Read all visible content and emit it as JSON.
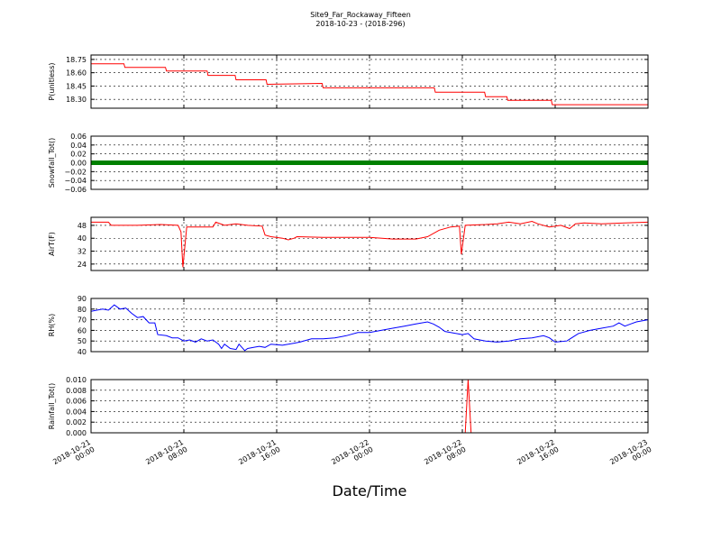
{
  "figure": {
    "title": "Site9_Far_Rockaway_Fifteen",
    "subtitle": "2018-10-23 - (2018-296)",
    "xlabel": "Date/Time"
  },
  "chart_data": {
    "type": "line",
    "xlim": [
      "2018-10-21 00:00",
      "2018-10-23 00:00"
    ],
    "x_ticks": [
      {
        "value": "2018-10-21 00:00",
        "line1": "2018-10-21",
        "line2": "00:00"
      },
      {
        "value": "2018-10-21 08:00",
        "line1": "2018-10-21",
        "line2": "08:00"
      },
      {
        "value": "2018-10-21 16:00",
        "line1": "2018-10-21",
        "line2": "16:00"
      },
      {
        "value": "2018-10-22 00:00",
        "line1": "2018-10-22",
        "line2": "00:00"
      },
      {
        "value": "2018-10-22 08:00",
        "line1": "2018-10-22",
        "line2": "08:00"
      },
      {
        "value": "2018-10-22 16:00",
        "line1": "2018-10-22",
        "line2": "16:00"
      },
      {
        "value": "2018-10-23 00:00",
        "line1": "2018-10-23",
        "line2": "00:00"
      }
    ],
    "grid": true,
    "panels": [
      {
        "id": "pressure",
        "ylabel": "P(unitless)",
        "ylim": [
          18.2,
          18.8
        ],
        "y_ticks": [
          18.3,
          18.45,
          18.6,
          18.75
        ],
        "y_tick_labels": [
          "18.30",
          "18.45",
          "18.60",
          "18.75"
        ],
        "color": "#ff0000",
        "style": "line",
        "points": [
          [
            "2018-10-21 00:00",
            18.7
          ],
          [
            "2018-10-21 02:50",
            18.7
          ],
          [
            "2018-10-21 02:55",
            18.66
          ],
          [
            "2018-10-21 06:25",
            18.66
          ],
          [
            "2018-10-21 06:30",
            18.62
          ],
          [
            "2018-10-21 10:00",
            18.62
          ],
          [
            "2018-10-21 10:05",
            18.57
          ],
          [
            "2018-10-21 12:25",
            18.57
          ],
          [
            "2018-10-21 12:30",
            18.52
          ],
          [
            "2018-10-21 15:05",
            18.52
          ],
          [
            "2018-10-21 15:10",
            18.47
          ],
          [
            "2018-10-21 19:55",
            18.48
          ],
          [
            "2018-10-21 20:00",
            18.43
          ],
          [
            "2018-10-22 05:35",
            18.43
          ],
          [
            "2018-10-22 05:40",
            18.38
          ],
          [
            "2018-10-22 09:55",
            18.38
          ],
          [
            "2018-10-22 10:00",
            18.33
          ],
          [
            "2018-10-22 11:50",
            18.33
          ],
          [
            "2018-10-22 11:55",
            18.29
          ],
          [
            "2018-10-22 15:40",
            18.29
          ],
          [
            "2018-10-22 15:45",
            18.24
          ],
          [
            "2018-10-23 00:00",
            18.24
          ]
        ]
      },
      {
        "id": "snowfall",
        "ylabel": "Snowfall_Tot()",
        "ylim": [
          -0.06,
          0.06
        ],
        "y_ticks": [
          -0.06,
          -0.04,
          -0.02,
          0.0,
          0.02,
          0.04,
          0.06
        ],
        "y_tick_labels": [
          "−0.06",
          "−0.04",
          "−0.02",
          "0.00",
          "0.02",
          "0.04",
          "0.06"
        ],
        "color": "#008000",
        "style": "thick",
        "points": [
          [
            "2018-10-21 00:00",
            0.0
          ],
          [
            "2018-10-23 00:00",
            0.0
          ]
        ]
      },
      {
        "id": "airtemp",
        "ylabel": "AirT(F)",
        "ylim": [
          20,
          53
        ],
        "y_ticks": [
          24,
          32,
          40,
          48
        ],
        "y_tick_labels": [
          "24",
          "32",
          "40",
          "48"
        ],
        "color": "#ff0000",
        "style": "line",
        "points": [
          [
            "2018-10-21 00:00",
            50
          ],
          [
            "2018-10-21 01:30",
            50
          ],
          [
            "2018-10-21 01:45",
            48
          ],
          [
            "2018-10-21 04:00",
            48
          ],
          [
            "2018-10-21 06:00",
            48.5
          ],
          [
            "2018-10-21 07:30",
            48
          ],
          [
            "2018-10-21 07:45",
            44
          ],
          [
            "2018-10-21 07:55",
            22
          ],
          [
            "2018-10-21 08:15",
            47
          ],
          [
            "2018-10-21 10:30",
            47
          ],
          [
            "2018-10-21 10:45",
            50
          ],
          [
            "2018-10-21 11:30",
            48
          ],
          [
            "2018-10-21 12:30",
            49
          ],
          [
            "2018-10-21 13:30",
            48
          ],
          [
            "2018-10-21 14:45",
            47.5
          ],
          [
            "2018-10-21 15:00",
            42
          ],
          [
            "2018-10-21 15:30",
            41
          ],
          [
            "2018-10-21 16:30",
            40
          ],
          [
            "2018-10-21 17:00",
            39
          ],
          [
            "2018-10-21 17:30",
            40
          ],
          [
            "2018-10-21 17:45",
            41
          ],
          [
            "2018-10-21 20:00",
            40.5
          ],
          [
            "2018-10-22 00:00",
            40.5
          ],
          [
            "2018-10-22 02:00",
            39.5
          ],
          [
            "2018-10-22 04:00",
            39.5
          ],
          [
            "2018-10-22 05:00",
            41
          ],
          [
            "2018-10-22 06:00",
            45
          ],
          [
            "2018-10-22 07:00",
            47
          ],
          [
            "2018-10-22 07:45",
            47.5
          ],
          [
            "2018-10-22 07:55",
            30
          ],
          [
            "2018-10-22 08:15",
            48
          ],
          [
            "2018-10-22 10:00",
            48.5
          ],
          [
            "2018-10-22 11:00",
            49
          ],
          [
            "2018-10-22 12:00",
            50
          ],
          [
            "2018-10-22 13:00",
            49
          ],
          [
            "2018-10-22 14:00",
            50.5
          ],
          [
            "2018-10-22 14:30",
            49
          ],
          [
            "2018-10-22 15:30",
            47
          ],
          [
            "2018-10-22 16:30",
            48
          ],
          [
            "2018-10-22 17:15",
            46
          ],
          [
            "2018-10-22 17:45",
            49
          ],
          [
            "2018-10-22 18:30",
            49.5
          ],
          [
            "2018-10-22 20:00",
            49
          ],
          [
            "2018-10-22 22:00",
            49.5
          ],
          [
            "2018-10-23 00:00",
            50
          ]
        ]
      },
      {
        "id": "rh",
        "ylabel": "RH(%)",
        "ylim": [
          40,
          90
        ],
        "y_ticks": [
          40,
          50,
          60,
          70,
          80,
          90
        ],
        "y_tick_labels": [
          "40",
          "50",
          "60",
          "70",
          "80",
          "90"
        ],
        "color": "#0000ff",
        "style": "line",
        "points": [
          [
            "2018-10-21 00:00",
            78
          ],
          [
            "2018-10-21 01:00",
            80
          ],
          [
            "2018-10-21 01:30",
            79
          ],
          [
            "2018-10-21 02:00",
            84
          ],
          [
            "2018-10-21 02:30",
            80
          ],
          [
            "2018-10-21 03:00",
            81
          ],
          [
            "2018-10-21 03:30",
            76
          ],
          [
            "2018-10-21 04:00",
            72
          ],
          [
            "2018-10-21 04:30",
            73
          ],
          [
            "2018-10-21 05:00",
            67
          ],
          [
            "2018-10-21 05:30",
            67
          ],
          [
            "2018-10-21 05:45",
            56
          ],
          [
            "2018-10-21 06:30",
            55
          ],
          [
            "2018-10-21 07:00",
            53
          ],
          [
            "2018-10-21 07:30",
            53
          ],
          [
            "2018-10-21 08:00",
            50
          ],
          [
            "2018-10-21 08:30",
            51
          ],
          [
            "2018-10-21 09:00",
            49
          ],
          [
            "2018-10-21 09:30",
            52
          ],
          [
            "2018-10-21 10:00",
            50
          ],
          [
            "2018-10-21 10:30",
            51
          ],
          [
            "2018-10-21 11:00",
            47
          ],
          [
            "2018-10-21 11:15",
            43
          ],
          [
            "2018-10-21 11:30",
            47
          ],
          [
            "2018-10-21 12:00",
            43
          ],
          [
            "2018-10-21 12:30",
            42
          ],
          [
            "2018-10-21 12:45",
            47
          ],
          [
            "2018-10-21 13:15",
            41
          ],
          [
            "2018-10-21 13:30",
            43
          ],
          [
            "2018-10-21 14:00",
            44
          ],
          [
            "2018-10-21 14:30",
            45
          ],
          [
            "2018-10-21 15:00",
            44
          ],
          [
            "2018-10-21 15:30",
            47
          ],
          [
            "2018-10-21 16:30",
            46
          ],
          [
            "2018-10-21 17:30",
            48
          ],
          [
            "2018-10-21 18:00",
            49
          ],
          [
            "2018-10-21 19:00",
            52
          ],
          [
            "2018-10-21 20:00",
            52
          ],
          [
            "2018-10-21 21:00",
            53
          ],
          [
            "2018-10-21 22:00",
            55
          ],
          [
            "2018-10-21 23:00",
            58
          ],
          [
            "2018-10-22 00:00",
            58
          ],
          [
            "2018-10-22 01:00",
            60
          ],
          [
            "2018-10-22 02:00",
            62
          ],
          [
            "2018-10-22 03:00",
            64
          ],
          [
            "2018-10-22 04:00",
            66
          ],
          [
            "2018-10-22 05:00",
            68
          ],
          [
            "2018-10-22 05:30",
            66
          ],
          [
            "2018-10-22 06:00",
            63
          ],
          [
            "2018-10-22 06:30",
            59
          ],
          [
            "2018-10-22 08:00",
            56
          ],
          [
            "2018-10-22 08:30",
            57
          ],
          [
            "2018-10-22 09:00",
            52
          ],
          [
            "2018-10-22 10:00",
            50
          ],
          [
            "2018-10-22 11:00",
            49
          ],
          [
            "2018-10-22 12:00",
            50
          ],
          [
            "2018-10-22 13:00",
            52
          ],
          [
            "2018-10-22 14:00",
            53
          ],
          [
            "2018-10-22 15:00",
            55
          ],
          [
            "2018-10-22 15:30",
            53
          ],
          [
            "2018-10-22 16:00",
            49
          ],
          [
            "2018-10-22 17:00",
            50
          ],
          [
            "2018-10-22 18:00",
            57
          ],
          [
            "2018-10-22 19:00",
            60
          ],
          [
            "2018-10-22 20:00",
            62
          ],
          [
            "2018-10-22 21:00",
            64
          ],
          [
            "2018-10-22 21:30",
            67
          ],
          [
            "2018-10-22 22:00",
            64
          ],
          [
            "2018-10-22 22:30",
            66
          ],
          [
            "2018-10-22 23:00",
            68
          ],
          [
            "2018-10-23 00:00",
            70
          ]
        ]
      },
      {
        "id": "rainfall",
        "ylabel": "Rainfall_Tot()",
        "ylim": [
          0.0,
          0.01
        ],
        "y_ticks": [
          0.0,
          0.002,
          0.004,
          0.006,
          0.008,
          0.01
        ],
        "y_tick_labels": [
          "0.000",
          "0.002",
          "0.004",
          "0.006",
          "0.008",
          "0.010"
        ],
        "color": "#ff0000",
        "style": "line",
        "points": [
          [
            "2018-10-21 00:00",
            0.0
          ],
          [
            "2018-10-22 08:15",
            0.0
          ],
          [
            "2018-10-22 08:30",
            0.01
          ],
          [
            "2018-10-22 08:45",
            0.0
          ],
          [
            "2018-10-23 00:00",
            0.0
          ]
        ]
      }
    ]
  }
}
